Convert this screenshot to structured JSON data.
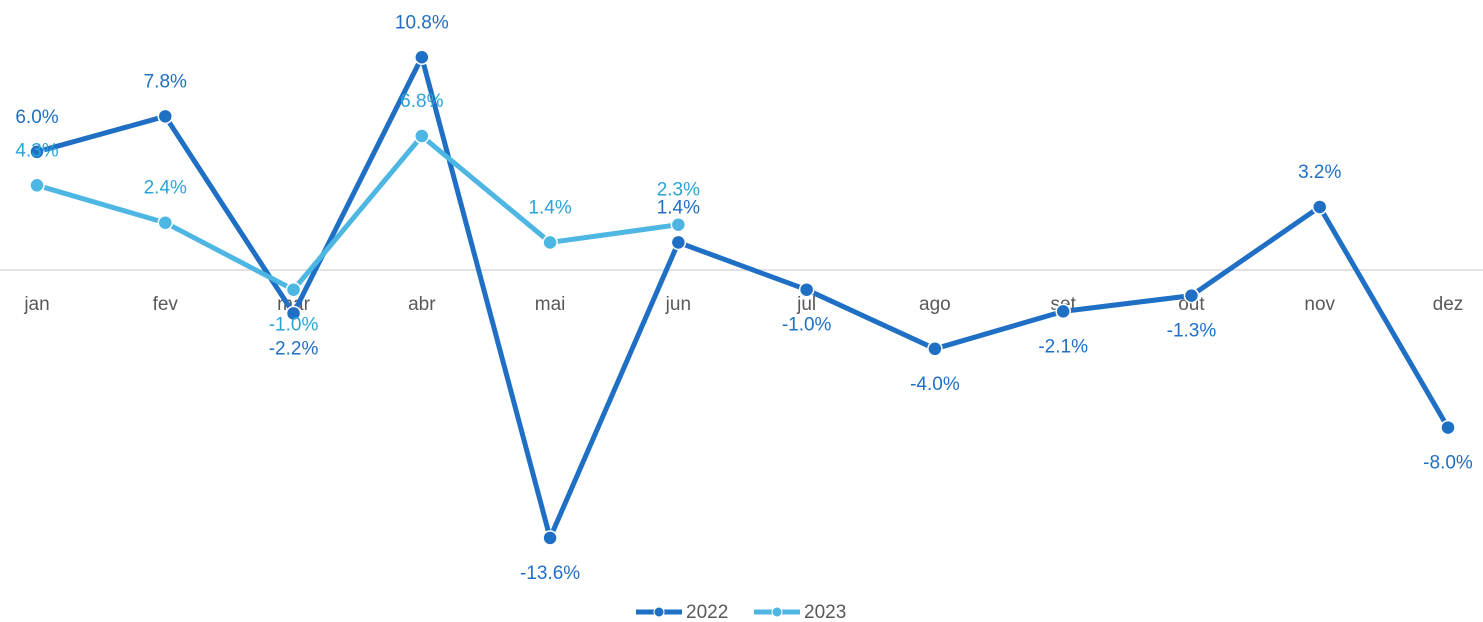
{
  "chart_data": {
    "type": "line",
    "categories": [
      "jan",
      "fev",
      "mar",
      "abr",
      "mai",
      "jun",
      "jul",
      "ago",
      "set",
      "out",
      "nov",
      "dez"
    ],
    "series": [
      {
        "name": "2022",
        "color": "#1f6fc5",
        "values": [
          6.0,
          7.8,
          -2.2,
          10.8,
          -13.6,
          1.4,
          -1.0,
          -4.0,
          -2.1,
          -1.3,
          3.2,
          -8.0
        ],
        "value_labels": [
          "6.0%",
          "7.8%",
          "-2.2%",
          "10.8%",
          "-13.6%",
          "1.4%",
          "-1.0%",
          "-4.0%",
          "-2.1%",
          "-1.3%",
          "3.2%",
          "-8.0%"
        ]
      },
      {
        "name": "2023",
        "color": "#4db6e2",
        "values": [
          4.3,
          2.4,
          -1.0,
          6.8,
          1.4,
          2.3,
          null,
          null,
          null,
          null,
          null,
          null
        ],
        "value_labels": [
          "4.3%",
          "2.4%",
          "-1.0%",
          "6.8%",
          "1.4%",
          "2.3%",
          null,
          null,
          null,
          null,
          null,
          null
        ]
      }
    ],
    "ylim": [
      -15,
      12
    ],
    "legend": "bottom"
  }
}
